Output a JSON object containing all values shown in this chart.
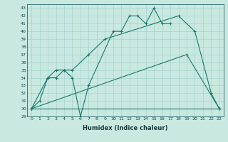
{
  "xlabel": "Humidex (Indice chaleur)",
  "bg_color": "#c8e8e0",
  "line_color": "#1a7a6a",
  "grid_color": "#9ecece",
  "xlim": [
    -0.5,
    23.5
  ],
  "ylim": [
    29,
    43.5
  ],
  "yticks": [
    29,
    30,
    31,
    32,
    33,
    34,
    35,
    36,
    37,
    38,
    39,
    40,
    41,
    42,
    43
  ],
  "xticks": [
    0,
    1,
    2,
    3,
    4,
    5,
    6,
    7,
    8,
    9,
    10,
    11,
    12,
    13,
    14,
    15,
    16,
    17,
    18,
    19,
    20,
    21,
    22,
    23
  ],
  "series": [
    {
      "x": [
        0,
        1,
        2,
        3,
        4,
        5,
        6,
        7,
        10,
        11,
        12,
        13,
        14,
        15,
        16,
        17
      ],
      "y": [
        30,
        31,
        34,
        34,
        35,
        34,
        29,
        33,
        40,
        40,
        42,
        42,
        41,
        43,
        41,
        41
      ]
    },
    {
      "x": [
        0,
        2,
        3,
        4,
        5,
        7,
        9,
        18,
        20,
        22,
        23
      ],
      "y": [
        30,
        34,
        35,
        35,
        35,
        37,
        39,
        42,
        40,
        32,
        30
      ]
    },
    {
      "x": [
        0,
        19,
        23
      ],
      "y": [
        30,
        37,
        30
      ]
    },
    {
      "x": [
        0,
        23
      ],
      "y": [
        30,
        30
      ]
    }
  ]
}
